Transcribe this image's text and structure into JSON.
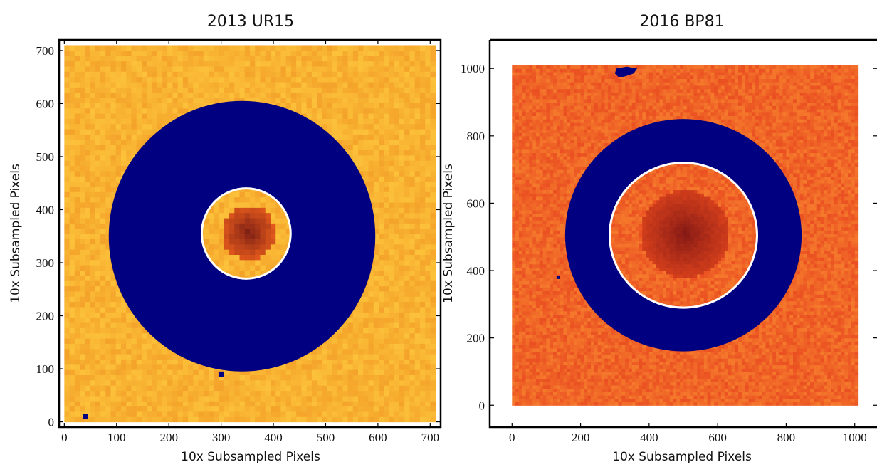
{
  "chart_data": [
    {
      "type": "heatmap",
      "title": "2013 UR15",
      "xlabel": "10x Subsampled Pixels",
      "ylabel": "10x Subsampled Pixels",
      "xlim": [
        -10,
        720
      ],
      "ylim": [
        -10,
        720
      ],
      "xticks": [
        0,
        100,
        200,
        300,
        400,
        500,
        600,
        700
      ],
      "yticks": [
        0,
        100,
        200,
        300,
        400,
        500,
        600,
        700
      ],
      "image_extent": [
        0,
        710,
        0,
        710
      ],
      "grid_cells": 72,
      "colors": {
        "background_low": "#f4a32a",
        "background_high": "#fcc13a",
        "target_core": "#6a1414",
        "target_halo": "#e45a1c",
        "mask": "#000080",
        "aperture": "#ffffff"
      },
      "mask_annulus_center": [
        340,
        350
      ],
      "mask_annulus_outer_radius": 255,
      "aperture_center": [
        348,
        355
      ],
      "aperture_radius": 85,
      "source_center": [
        352,
        358
      ],
      "masked_pixels": [
        [
          35,
          5
        ],
        [
          295,
          85
        ]
      ]
    },
    {
      "type": "heatmap",
      "title": "2016 BP81",
      "xlabel": "10x Subsampled Pixels",
      "ylabel": "10x Subsampled Pixels",
      "xlim": [
        -65,
        1065
      ],
      "ylim": [
        -65,
        1085
      ],
      "xticks": [
        0,
        200,
        400,
        600,
        800,
        1000
      ],
      "yticks": [
        0,
        200,
        400,
        600,
        800,
        1000
      ],
      "image_extent": [
        0,
        1010,
        0,
        1010
      ],
      "grid_cells": 101,
      "colors": {
        "background_low": "#ea4f21",
        "background_high": "#f57a2c",
        "target_core": "#7a1414",
        "target_halo": "#d9411c",
        "mask": "#000080",
        "aperture": "#ffffff"
      },
      "mask_annulus_center": [
        500,
        505
      ],
      "mask_annulus_outer_radius": 345,
      "aperture_center": [
        500,
        505
      ],
      "aperture_radius": 215,
      "source_center": [
        505,
        510
      ],
      "masked_pixels": [
        [
          130,
          375
        ]
      ],
      "masked_blob": [
        [
          300,
          985
        ],
        [
          310,
          975
        ],
        [
          325,
          975
        ],
        [
          340,
          980
        ],
        [
          355,
          985
        ],
        [
          365,
          1000
        ],
        [
          335,
          1005
        ],
        [
          305,
          1000
        ]
      ]
    }
  ]
}
